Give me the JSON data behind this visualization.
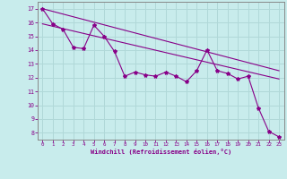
{
  "xlabel": "Windchill (Refroidissement éolien,°C)",
  "background_color": "#c8ecec",
  "grid_color": "#b0d8d8",
  "line_color": "#880088",
  "spine_color": "#888888",
  "xlim": [
    -0.5,
    23.5
  ],
  "ylim": [
    7.5,
    17.5
  ],
  "yticks": [
    8,
    9,
    10,
    11,
    12,
    13,
    14,
    15,
    16,
    17
  ],
  "xticks": [
    0,
    1,
    2,
    3,
    4,
    5,
    6,
    7,
    8,
    9,
    10,
    11,
    12,
    13,
    14,
    15,
    16,
    17,
    18,
    19,
    20,
    21,
    22,
    23
  ],
  "series1_x": [
    0,
    1,
    2,
    3,
    4,
    5,
    6,
    7,
    8,
    9,
    10,
    11,
    12,
    13,
    14,
    15,
    16,
    17,
    18,
    19,
    20,
    21,
    22,
    23
  ],
  "series1_y": [
    17.0,
    15.9,
    15.5,
    14.2,
    14.1,
    15.8,
    15.0,
    13.9,
    12.1,
    12.4,
    12.2,
    12.1,
    12.4,
    12.1,
    11.7,
    12.5,
    14.0,
    12.5,
    12.3,
    11.9,
    12.1,
    9.8,
    8.1,
    7.7
  ],
  "trend1_x": [
    0,
    23
  ],
  "trend1_y": [
    17.0,
    12.5
  ],
  "trend2_x": [
    0,
    23
  ],
  "trend2_y": [
    15.9,
    11.9
  ]
}
